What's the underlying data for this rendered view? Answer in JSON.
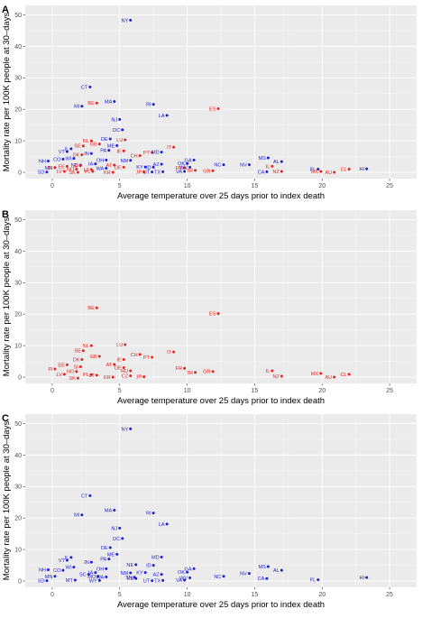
{
  "colors": {
    "us": "#1f1fd6",
    "eu": "#e8231f"
  },
  "chart_data": [
    {
      "type": "scatter",
      "panel": "A",
      "xlabel": "Average temperature over 25 days prior to index death",
      "ylabel": "Mortality rate per 100K people at 30–days",
      "xlim": [
        -2,
        27
      ],
      "ylim": [
        -2,
        53
      ],
      "xticks": [
        "0",
        "5",
        "10",
        "15",
        "20",
        "25"
      ],
      "yticks": [
        "0",
        "10",
        "20",
        "30",
        "40",
        "50"
      ],
      "points": [
        {
          "label": "NY",
          "x": 5.8,
          "y": 48.3,
          "group": "us"
        },
        {
          "label": "CT",
          "x": 2.8,
          "y": 27.1,
          "group": "us"
        },
        {
          "label": "MA",
          "x": 4.6,
          "y": 22.5,
          "group": "us"
        },
        {
          "label": "BE",
          "x": 3.3,
          "y": 22.0,
          "group": "eu"
        },
        {
          "label": "MI",
          "x": 2.2,
          "y": 21.0,
          "group": "us"
        },
        {
          "label": "RI",
          "x": 7.5,
          "y": 21.6,
          "group": "us"
        },
        {
          "label": "ES",
          "x": 12.3,
          "y": 20.2,
          "group": "eu"
        },
        {
          "label": "LA",
          "x": 8.5,
          "y": 18.1,
          "group": "us"
        },
        {
          "label": "NJ",
          "x": 5.0,
          "y": 16.8,
          "group": "us"
        },
        {
          "label": "DC",
          "x": 5.2,
          "y": 13.5,
          "group": "us"
        },
        {
          "label": "DE",
          "x": 4.3,
          "y": 10.6,
          "group": "us"
        },
        {
          "label": "NL",
          "x": 2.9,
          "y": 10.0,
          "group": "eu"
        },
        {
          "label": "LU",
          "x": 5.4,
          "y": 10.3,
          "group": "eu"
        },
        {
          "label": "GB",
          "x": 3.5,
          "y": 9.0,
          "group": "eu"
        },
        {
          "label": "IT",
          "x": 9.0,
          "y": 8.0,
          "group": "eu"
        },
        {
          "label": "SE",
          "x": 2.3,
          "y": 8.4,
          "group": "eu"
        },
        {
          "label": "IL",
          "x": 1.4,
          "y": 7.5,
          "group": "us"
        },
        {
          "label": "VT",
          "x": 1.1,
          "y": 6.6,
          "group": "us"
        },
        {
          "label": "ME",
          "x": 4.8,
          "y": 8.5,
          "group": "us"
        },
        {
          "label": "IE",
          "x": 5.3,
          "y": 6.8,
          "group": "eu"
        },
        {
          "label": "PT",
          "x": 7.4,
          "y": 6.3,
          "group": "eu"
        },
        {
          "label": "MD",
          "x": 8.1,
          "y": 6.4,
          "group": "us"
        },
        {
          "label": "IN",
          "x": 2.9,
          "y": 6.0,
          "group": "us"
        },
        {
          "label": "PA",
          "x": 4.2,
          "y": 7.0,
          "group": "us"
        },
        {
          "label": "DK",
          "x": 2.2,
          "y": 5.6,
          "group": "eu"
        },
        {
          "label": "WI",
          "x": 1.6,
          "y": 4.4,
          "group": "us"
        },
        {
          "label": "CH",
          "x": 6.5,
          "y": 5.3,
          "group": "eu"
        },
        {
          "label": "CO",
          "x": 0.8,
          "y": 4.2,
          "group": "us"
        },
        {
          "label": "OH",
          "x": 4.0,
          "y": 3.9,
          "group": "us"
        },
        {
          "label": "NM",
          "x": 5.8,
          "y": 3.8,
          "group": "us"
        },
        {
          "label": "GA",
          "x": 10.5,
          "y": 3.9,
          "group": "us"
        },
        {
          "label": "MS",
          "x": 16.0,
          "y": 4.6,
          "group": "us"
        },
        {
          "label": "AL",
          "x": 17.0,
          "y": 3.4,
          "group": "us"
        },
        {
          "label": "NH",
          "x": -0.3,
          "y": 3.6,
          "group": "us"
        },
        {
          "label": "IA",
          "x": 3.2,
          "y": 2.7,
          "group": "us"
        },
        {
          "label": "AZ",
          "x": 8.1,
          "y": 2.6,
          "group": "us"
        },
        {
          "label": "OK",
          "x": 10.0,
          "y": 2.8,
          "group": "us"
        },
        {
          "label": "NC",
          "x": 12.7,
          "y": 2.4,
          "group": "us"
        },
        {
          "label": "NV",
          "x": 14.6,
          "y": 2.4,
          "group": "us"
        },
        {
          "label": "ND",
          "x": 2.1,
          "y": 2.3,
          "group": "us"
        },
        {
          "label": "SI",
          "x": 2.1,
          "y": 2.1,
          "group": "eu"
        },
        {
          "label": "AT",
          "x": 4.6,
          "y": 2.3,
          "group": "eu"
        },
        {
          "label": "EE",
          "x": 1.1,
          "y": 1.9,
          "group": "eu"
        },
        {
          "label": "MN",
          "x": 0.2,
          "y": 1.5,
          "group": "us"
        },
        {
          "label": "FI",
          "x": 0.2,
          "y": 1.5,
          "group": "eu"
        },
        {
          "label": "NO",
          "x": 1.8,
          "y": 1.0,
          "group": "eu"
        },
        {
          "label": "LT",
          "x": 2.9,
          "y": 0.9,
          "group": "eu"
        },
        {
          "label": "WA",
          "x": 4.0,
          "y": 1.3,
          "group": "us"
        },
        {
          "label": "DE",
          "x": 5.3,
          "y": 1.6,
          "group": "eu"
        },
        {
          "label": "KY",
          "x": 6.9,
          "y": 1.7,
          "group": "us"
        },
        {
          "label": "ID",
          "x": 7.5,
          "y": 1.6,
          "group": "us"
        },
        {
          "label": "FR",
          "x": 9.8,
          "y": 1.4,
          "group": "eu"
        },
        {
          "label": "WV",
          "x": 10.2,
          "y": 1.6,
          "group": "us"
        },
        {
          "label": "IL",
          "x": 16.3,
          "y": 1.9,
          "group": "eu"
        },
        {
          "label": "FL",
          "x": 19.7,
          "y": 1.0,
          "group": "us"
        },
        {
          "label": "CL",
          "x": 22.0,
          "y": 1.0,
          "group": "eu"
        },
        {
          "label": "HI",
          "x": 23.3,
          "y": 1.1,
          "group": "us"
        },
        {
          "label": "SD",
          "x": -0.4,
          "y": 0.1,
          "group": "us"
        },
        {
          "label": "LV",
          "x": 0.9,
          "y": 0.3,
          "group": "eu"
        },
        {
          "label": "SK",
          "x": 1.9,
          "y": 0.0,
          "group": "eu"
        },
        {
          "label": "PL",
          "x": 3.0,
          "y": 0.3,
          "group": "eu"
        },
        {
          "label": "KR",
          "x": 4.5,
          "y": 0.0,
          "group": "eu"
        },
        {
          "label": "JP",
          "x": 6.8,
          "y": 0.1,
          "group": "eu"
        },
        {
          "label": "UT",
          "x": 7.4,
          "y": 0.1,
          "group": "us"
        },
        {
          "label": "TX",
          "x": 8.2,
          "y": 0.2,
          "group": "us"
        },
        {
          "label": "VA",
          "x": 9.8,
          "y": 0.3,
          "group": "us"
        },
        {
          "label": "TR",
          "x": 10.6,
          "y": 0.6,
          "group": "eu"
        },
        {
          "label": "GR",
          "x": 11.9,
          "y": 0.5,
          "group": "eu"
        },
        {
          "label": "CA",
          "x": 15.9,
          "y": 0.2,
          "group": "us"
        },
        {
          "label": "NZ",
          "x": 17.0,
          "y": 0.3,
          "group": "eu"
        },
        {
          "label": "MX",
          "x": 19.9,
          "y": 0.3,
          "group": "eu"
        },
        {
          "label": "AU",
          "x": 20.9,
          "y": 0.0,
          "group": "eu"
        }
      ]
    },
    {
      "type": "scatter",
      "panel": "B",
      "xlabel": "Average temperature over 25 days prior to index death",
      "ylabel": "Mortality rate per 100K people at 30–days",
      "xlim": [
        -2,
        27
      ],
      "ylim": [
        -2,
        53
      ],
      "xticks": [
        "0",
        "5",
        "10",
        "15",
        "20",
        "25"
      ],
      "yticks": [
        "0",
        "10",
        "20",
        "30",
        "40",
        "50"
      ],
      "points": [
        {
          "label": "BE",
          "x": 3.3,
          "y": 22.0,
          "group": "eu"
        },
        {
          "label": "ES",
          "x": 12.3,
          "y": 20.2,
          "group": "eu"
        },
        {
          "label": "NL",
          "x": 2.9,
          "y": 10.0,
          "group": "eu"
        },
        {
          "label": "LU",
          "x": 5.4,
          "y": 10.3,
          "group": "eu"
        },
        {
          "label": "SE",
          "x": 2.3,
          "y": 8.4,
          "group": "eu"
        },
        {
          "label": "IT",
          "x": 9.0,
          "y": 8.0,
          "group": "eu"
        },
        {
          "label": "CH",
          "x": 6.5,
          "y": 7.2,
          "group": "eu"
        },
        {
          "label": "GB",
          "x": 3.5,
          "y": 6.6,
          "group": "eu"
        },
        {
          "label": "PT",
          "x": 7.4,
          "y": 6.3,
          "group": "eu"
        },
        {
          "label": "DK",
          "x": 2.2,
          "y": 5.6,
          "group": "eu"
        },
        {
          "label": "IE",
          "x": 5.3,
          "y": 5.6,
          "group": "eu"
        },
        {
          "label": "EE",
          "x": 1.1,
          "y": 3.9,
          "group": "eu"
        },
        {
          "label": "SI",
          "x": 2.1,
          "y": 3.3,
          "group": "eu"
        },
        {
          "label": "AT",
          "x": 4.6,
          "y": 4.0,
          "group": "eu"
        },
        {
          "label": "DE",
          "x": 5.3,
          "y": 3.0,
          "group": "eu"
        },
        {
          "label": "FR",
          "x": 9.8,
          "y": 2.8,
          "group": "eu"
        },
        {
          "label": "FI",
          "x": 0.2,
          "y": 2.6,
          "group": "eu"
        },
        {
          "label": "NO",
          "x": 1.8,
          "y": 1.8,
          "group": "eu"
        },
        {
          "label": "HU",
          "x": 5.8,
          "y": 2.0,
          "group": "eu"
        },
        {
          "label": "IL",
          "x": 16.3,
          "y": 2.0,
          "group": "eu"
        },
        {
          "label": "TR",
          "x": 10.6,
          "y": 1.5,
          "group": "eu"
        },
        {
          "label": "GR",
          "x": 11.9,
          "y": 1.8,
          "group": "eu"
        },
        {
          "label": "LV",
          "x": 0.9,
          "y": 0.9,
          "group": "eu"
        },
        {
          "label": "PL",
          "x": 2.9,
          "y": 0.8,
          "group": "eu"
        },
        {
          "label": "LT",
          "x": 3.3,
          "y": 0.6,
          "group": "eu"
        },
        {
          "label": "CZ",
          "x": 5.8,
          "y": 0.4,
          "group": "eu"
        },
        {
          "label": "MX",
          "x": 19.9,
          "y": 1.2,
          "group": "eu"
        },
        {
          "label": "CL",
          "x": 22.0,
          "y": 0.9,
          "group": "eu"
        },
        {
          "label": "SK",
          "x": 1.9,
          "y": -0.3,
          "group": "eu"
        },
        {
          "label": "KR",
          "x": 4.5,
          "y": 0.0,
          "group": "eu"
        },
        {
          "label": "JP",
          "x": 6.8,
          "y": 0.1,
          "group": "eu"
        },
        {
          "label": "NZ",
          "x": 17.0,
          "y": 0.3,
          "group": "eu"
        },
        {
          "label": "AU",
          "x": 20.9,
          "y": 0.0,
          "group": "eu"
        }
      ]
    },
    {
      "type": "scatter",
      "panel": "C",
      "xlabel": "Average temperature over 25 days prior to index death",
      "ylabel": "Mortality rate per 100K people at 30–days",
      "xlim": [
        -2,
        27
      ],
      "ylim": [
        -2,
        53
      ],
      "xticks": [
        "0",
        "5",
        "10",
        "15",
        "20",
        "25"
      ],
      "yticks": [
        "0",
        "10",
        "20",
        "30",
        "40",
        "50"
      ],
      "points": [
        {
          "label": "NY",
          "x": 5.8,
          "y": 48.3,
          "group": "us"
        },
        {
          "label": "CT",
          "x": 2.8,
          "y": 27.1,
          "group": "us"
        },
        {
          "label": "MA",
          "x": 4.6,
          "y": 22.5,
          "group": "us"
        },
        {
          "label": "MI",
          "x": 2.2,
          "y": 21.0,
          "group": "us"
        },
        {
          "label": "RI",
          "x": 7.5,
          "y": 21.6,
          "group": "us"
        },
        {
          "label": "LA",
          "x": 8.5,
          "y": 18.1,
          "group": "us"
        },
        {
          "label": "NJ",
          "x": 5.0,
          "y": 16.8,
          "group": "us"
        },
        {
          "label": "DC",
          "x": 5.2,
          "y": 13.5,
          "group": "us"
        },
        {
          "label": "DE",
          "x": 4.3,
          "y": 10.6,
          "group": "us"
        },
        {
          "label": "MD",
          "x": 8.1,
          "y": 7.6,
          "group": "us"
        },
        {
          "label": "IL",
          "x": 1.4,
          "y": 7.5,
          "group": "us"
        },
        {
          "label": "VT",
          "x": 1.1,
          "y": 6.6,
          "group": "us"
        },
        {
          "label": "ME",
          "x": 4.8,
          "y": 8.5,
          "group": "us"
        },
        {
          "label": "IN",
          "x": 2.9,
          "y": 6.0,
          "group": "us"
        },
        {
          "label": "PA",
          "x": 4.2,
          "y": 7.0,
          "group": "us"
        },
        {
          "label": "NE",
          "x": 6.2,
          "y": 5.2,
          "group": "us"
        },
        {
          "label": "ID",
          "x": 7.5,
          "y": 5.0,
          "group": "us"
        },
        {
          "label": "GA",
          "x": 10.5,
          "y": 3.9,
          "group": "us"
        },
        {
          "label": "MS",
          "x": 16.0,
          "y": 4.6,
          "group": "us"
        },
        {
          "label": "AL",
          "x": 17.0,
          "y": 3.4,
          "group": "us"
        },
        {
          "label": "WI",
          "x": 1.6,
          "y": 4.4,
          "group": "us"
        },
        {
          "label": "OH",
          "x": 4.0,
          "y": 3.9,
          "group": "us"
        },
        {
          "label": "NH",
          "x": -0.3,
          "y": 3.6,
          "group": "us"
        },
        {
          "label": "CO",
          "x": 0.8,
          "y": 3.4,
          "group": "us"
        },
        {
          "label": "IA",
          "x": 3.2,
          "y": 2.7,
          "group": "us"
        },
        {
          "label": "KY",
          "x": 6.9,
          "y": 2.7,
          "group": "us"
        },
        {
          "label": "NM",
          "x": 5.8,
          "y": 2.6,
          "group": "us"
        },
        {
          "label": "OK",
          "x": 10.0,
          "y": 2.8,
          "group": "us"
        },
        {
          "label": "NV",
          "x": 14.6,
          "y": 2.4,
          "group": "us"
        },
        {
          "label": "AZ",
          "x": 8.1,
          "y": 2.1,
          "group": "us"
        },
        {
          "label": "SC",
          "x": 2.7,
          "y": 2.1,
          "group": "us"
        },
        {
          "label": "MO",
          "x": 3.4,
          "y": 1.5,
          "group": "us"
        },
        {
          "label": "WA",
          "x": 4.0,
          "y": 1.3,
          "group": "us"
        },
        {
          "label": "MN",
          "x": 0.2,
          "y": 1.5,
          "group": "us"
        },
        {
          "label": "TN",
          "x": 6.1,
          "y": 1.2,
          "group": "us"
        },
        {
          "label": "NC",
          "x": 12.7,
          "y": 1.5,
          "group": "us"
        },
        {
          "label": "KS",
          "x": 6.2,
          "y": 0.8,
          "group": "us"
        },
        {
          "label": "WV",
          "x": 10.2,
          "y": 1.0,
          "group": "us"
        },
        {
          "label": "CA",
          "x": 15.9,
          "y": 0.8,
          "group": "us"
        },
        {
          "label": "HI",
          "x": 23.3,
          "y": 1.1,
          "group": "us"
        },
        {
          "label": "SD",
          "x": -0.4,
          "y": 0.1,
          "group": "us"
        },
        {
          "label": "MT",
          "x": 1.7,
          "y": 0.3,
          "group": "us"
        },
        {
          "label": "WY",
          "x": 3.5,
          "y": 0.2,
          "group": "us"
        },
        {
          "label": "UT",
          "x": 7.4,
          "y": 0.1,
          "group": "us"
        },
        {
          "label": "TX",
          "x": 8.2,
          "y": 0.2,
          "group": "us"
        },
        {
          "label": "VA",
          "x": 9.8,
          "y": 0.3,
          "group": "us"
        },
        {
          "label": "FL",
          "x": 19.7,
          "y": 0.4,
          "group": "us"
        }
      ]
    }
  ]
}
